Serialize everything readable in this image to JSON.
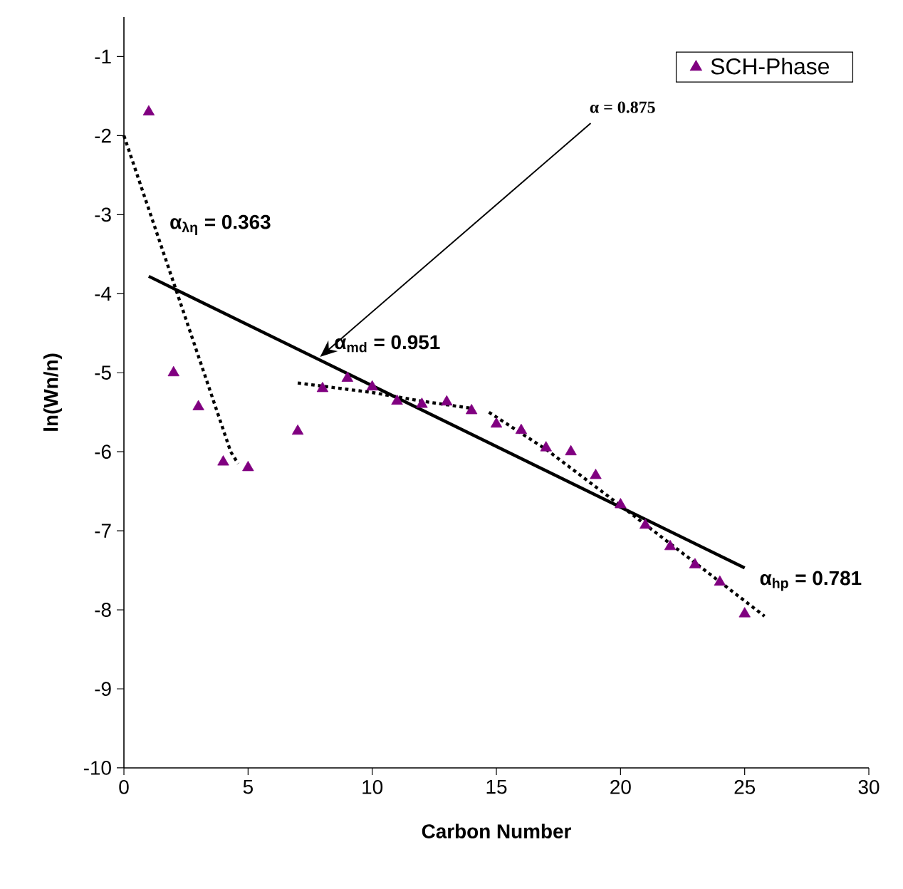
{
  "chart_data": {
    "type": "scatter",
    "xlabel": "Carbon Number",
    "ylabel": "ln(Wn/n)",
    "xlim": [
      0,
      30
    ],
    "xticks": [
      0,
      5,
      10,
      15,
      20,
      25,
      30
    ],
    "ylim": [
      -10,
      -0.5
    ],
    "yticks": [
      -10,
      -9,
      -8,
      -7,
      -6,
      -5,
      -4,
      -3,
      -2,
      -1
    ],
    "grid": false,
    "legend": "top right",
    "marker": "triangle",
    "series": [
      {
        "name": "SCH-Phase",
        "color": "#800080",
        "x": [
          1,
          2,
          3,
          4,
          5,
          7,
          8,
          9,
          10,
          11,
          12,
          13,
          14,
          15,
          16,
          17,
          18,
          19,
          20,
          21,
          22,
          23,
          24,
          25
        ],
        "values": [
          -1.7,
          -5.0,
          -5.43,
          -6.13,
          -6.2,
          -5.74,
          -5.2,
          -5.07,
          -5.18,
          -5.36,
          -5.4,
          -5.37,
          -5.48,
          -5.65,
          -5.73,
          -5.95,
          -6.0,
          -6.3,
          -6.67,
          -6.93,
          -7.2,
          -7.43,
          -7.65,
          -8.05
        ]
      },
      {
        "type": "line",
        "color": "#000000",
        "line_style": "solid",
        "marker": "none",
        "x": [
          1,
          25
        ],
        "values": [
          -3.78,
          -7.47
        ]
      },
      {
        "type": "line",
        "color": "#000000",
        "line_style": "dotted",
        "marker": "none",
        "x": [
          0,
          4.3,
          4.6
        ],
        "values": [
          -2.0,
          -6.0,
          -6.15
        ]
      },
      {
        "type": "line",
        "color": "#000000",
        "line_style": "dotted",
        "marker": "none",
        "x": [
          7,
          10,
          12,
          14
        ],
        "values": [
          -5.13,
          -5.25,
          -5.36,
          -5.45
        ]
      },
      {
        "type": "line",
        "color": "#000000",
        "line_style": "dotted",
        "marker": "none",
        "x": [
          14.7,
          17,
          20,
          25.8
        ],
        "values": [
          -5.5,
          -5.97,
          -6.68,
          -8.08
        ]
      }
    ],
    "annotations": [
      "α$_{λη}$ = 0.363",
      "α$_{md}$ = 0.951",
      "α$_{hp}$ = 0.781",
      {
        "text": "α = 0.875",
        "x": 7.9,
        "y": -4.8
      }
    ]
  }
}
